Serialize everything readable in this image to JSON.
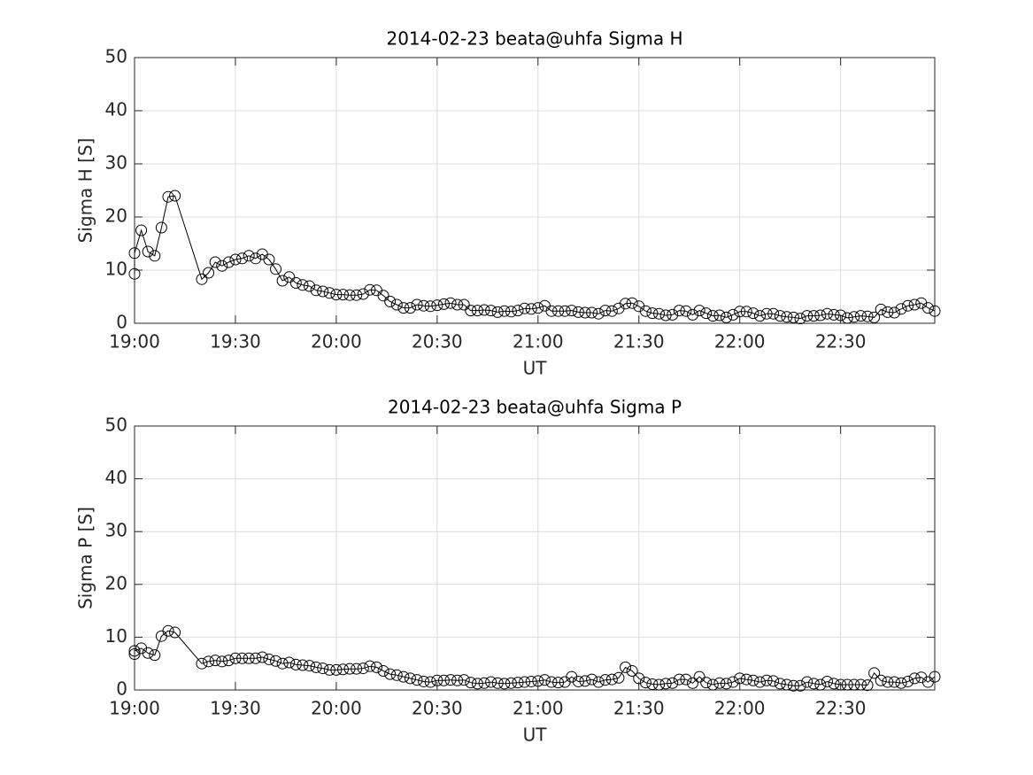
{
  "chart_data": [
    {
      "type": "line",
      "title": "2014-02-23  beata@uhfa Sigma H",
      "xlabel": "UT",
      "ylabel": "Sigma H [S]",
      "color": "#000000",
      "marker": "circle",
      "grid": true,
      "xlim": [
        "19:00",
        "22:58"
      ],
      "xticks": [
        "19:00",
        "19:30",
        "20:00",
        "20:30",
        "21:00",
        "21:30",
        "22:00",
        "22:30"
      ],
      "ylim": [
        0,
        50
      ],
      "yticks": [
        0,
        10,
        20,
        30,
        40,
        50
      ],
      "x": [
        "19:00",
        "19:00",
        "19:02",
        "19:04",
        "19:06",
        "19:08",
        "19:10",
        "19:12",
        "19:20",
        "19:22",
        "19:24",
        "19:26",
        "19:28",
        "19:30",
        "19:32",
        "19:34",
        "19:36",
        "19:38",
        "19:40",
        "19:42",
        "19:44",
        "19:46",
        "19:48",
        "19:50",
        "19:52",
        "19:54",
        "19:56",
        "19:58",
        "20:00",
        "20:02",
        "20:04",
        "20:06",
        "20:08",
        "20:10",
        "20:12",
        "20:14",
        "20:16",
        "20:18",
        "20:20",
        "20:22",
        "20:24",
        "20:26",
        "20:28",
        "20:30",
        "20:32",
        "20:34",
        "20:36",
        "20:38",
        "20:40",
        "20:42",
        "20:44",
        "20:46",
        "20:48",
        "20:50",
        "20:52",
        "20:54",
        "20:56",
        "20:58",
        "21:00",
        "21:02",
        "21:04",
        "21:06",
        "21:08",
        "21:10",
        "21:12",
        "21:14",
        "21:16",
        "21:18",
        "21:20",
        "21:22",
        "21:24",
        "21:26",
        "21:28",
        "21:30",
        "21:32",
        "21:34",
        "21:36",
        "21:38",
        "21:40",
        "21:42",
        "21:44",
        "21:46",
        "21:48",
        "21:50",
        "21:52",
        "21:54",
        "21:56",
        "21:58",
        "22:00",
        "22:02",
        "22:04",
        "22:06",
        "22:08",
        "22:10",
        "22:12",
        "22:14",
        "22:16",
        "22:18",
        "22:20",
        "22:22",
        "22:24",
        "22:26",
        "22:28",
        "22:30",
        "22:32",
        "22:34",
        "22:36",
        "22:38",
        "22:40",
        "22:42",
        "22:44",
        "22:46",
        "22:48",
        "22:50",
        "22:52",
        "22:54",
        "22:56",
        "22:58"
      ],
      "values": [
        9.3,
        13.2,
        17.5,
        13.5,
        12.7,
        18,
        23.8,
        24,
        8.3,
        9.5,
        11.5,
        10.8,
        11.5,
        12,
        12.2,
        12.7,
        12.2,
        13,
        12,
        10.2,
        8,
        8.7,
        7.6,
        7.2,
        7,
        6.2,
        6,
        5.7,
        5.4,
        5.4,
        5.3,
        5.3,
        5.5,
        6.3,
        6.2,
        5.2,
        4.1,
        3.5,
        2.9,
        2.9,
        3.5,
        3.3,
        3.2,
        3.4,
        3.6,
        3.8,
        3.5,
        3.5,
        2.4,
        2.4,
        2.5,
        2.4,
        2.1,
        2.3,
        2.2,
        2.4,
        2.8,
        2.7,
        2.9,
        3.3,
        2.3,
        2.3,
        2.3,
        2.4,
        2.1,
        2.0,
        2.0,
        1.8,
        2.4,
        2.3,
        2.8,
        3.7,
        3.8,
        3.2,
        2.3,
        1.9,
        1.8,
        1.5,
        1.6,
        2.4,
        2.3,
        1.6,
        2.4,
        1.9,
        1.4,
        1.5,
        1.1,
        1.6,
        2.2,
        2.2,
        1.9,
        1.4,
        1.8,
        1.8,
        1.4,
        1.2,
        1.1,
        0.9,
        1.4,
        1.4,
        1.5,
        1.8,
        1.6,
        1.5,
        1.0,
        1.2,
        1.4,
        1.3,
        1.1,
        2.6,
        2.1,
        2.0,
        2.7,
        3.3,
        3.5,
        3.8,
        2.9,
        2.3
      ]
    },
    {
      "type": "line",
      "title": "2014-02-23  beata@uhfa Sigma P",
      "xlabel": "UT",
      "ylabel": "Sigma P [S]",
      "color": "#000000",
      "marker": "circle",
      "grid": true,
      "xlim": [
        "19:00",
        "22:58"
      ],
      "xticks": [
        "19:00",
        "19:30",
        "20:00",
        "20:30",
        "21:00",
        "21:30",
        "22:00",
        "22:30"
      ],
      "ylim": [
        0,
        50
      ],
      "yticks": [
        0,
        10,
        20,
        30,
        40,
        50
      ],
      "x": [
        "19:00",
        "19:00",
        "19:02",
        "19:04",
        "19:06",
        "19:08",
        "19:10",
        "19:12",
        "19:20",
        "19:22",
        "19:24",
        "19:26",
        "19:28",
        "19:30",
        "19:32",
        "19:34",
        "19:36",
        "19:38",
        "19:40",
        "19:42",
        "19:44",
        "19:46",
        "19:48",
        "19:50",
        "19:52",
        "19:54",
        "19:56",
        "19:58",
        "20:00",
        "20:02",
        "20:04",
        "20:06",
        "20:08",
        "20:10",
        "20:12",
        "20:14",
        "20:16",
        "20:18",
        "20:20",
        "20:22",
        "20:24",
        "20:26",
        "20:28",
        "20:30",
        "20:32",
        "20:34",
        "20:36",
        "20:38",
        "20:40",
        "20:42",
        "20:44",
        "20:46",
        "20:48",
        "20:50",
        "20:52",
        "20:54",
        "20:56",
        "20:58",
        "21:00",
        "21:02",
        "21:04",
        "21:06",
        "21:08",
        "21:10",
        "21:12",
        "21:14",
        "21:16",
        "21:18",
        "21:20",
        "21:22",
        "21:24",
        "21:26",
        "21:28",
        "21:30",
        "21:32",
        "21:34",
        "21:36",
        "21:38",
        "21:40",
        "21:42",
        "21:44",
        "21:46",
        "21:48",
        "21:50",
        "21:52",
        "21:54",
        "21:56",
        "21:58",
        "22:00",
        "22:02",
        "22:04",
        "22:06",
        "22:08",
        "22:10",
        "22:12",
        "22:14",
        "22:16",
        "22:18",
        "22:20",
        "22:22",
        "22:24",
        "22:26",
        "22:28",
        "22:30",
        "22:32",
        "22:34",
        "22:36",
        "22:38",
        "22:40",
        "22:42",
        "22:44",
        "22:46",
        "22:48",
        "22:50",
        "22:52",
        "22:54",
        "22:56",
        "22:58"
      ],
      "values": [
        6.8,
        7.4,
        7.9,
        7.0,
        6.6,
        10.2,
        11.2,
        10.9,
        5.0,
        5.4,
        5.6,
        5.4,
        5.6,
        6.0,
        6.0,
        6.0,
        6.0,
        6.2,
        5.8,
        5.5,
        5.0,
        5.2,
        4.8,
        4.7,
        4.6,
        4.3,
        4.1,
        3.8,
        3.8,
        3.9,
        4.0,
        4.0,
        4.1,
        4.5,
        4.3,
        3.6,
        3.0,
        2.8,
        2.5,
        2.2,
        1.9,
        1.6,
        1.5,
        1.8,
        1.8,
        1.9,
        1.8,
        1.9,
        1.4,
        1.2,
        1.3,
        1.5,
        1.3,
        1.2,
        1.3,
        1.4,
        1.5,
        1.6,
        1.7,
        1.9,
        1.5,
        1.4,
        1.5,
        2.5,
        1.6,
        1.7,
        2.0,
        1.5,
        1.9,
        2.0,
        2.3,
        4.3,
        3.6,
        2.2,
        1.4,
        1.1,
        1.0,
        1.2,
        1.3,
        2.0,
        2.0,
        1.3,
        2.5,
        1.4,
        1.0,
        1.3,
        1.2,
        1.5,
        2.2,
        2.0,
        1.8,
        1.5,
        1.8,
        1.7,
        1.2,
        1.0,
        0.8,
        0.8,
        1.5,
        1.2,
        1.0,
        1.6,
        1.2,
        1.0,
        1.0,
        1.0,
        1.0,
        0.9,
        3.2,
        1.8,
        1.5,
        1.5,
        1.3,
        1.6,
        2.2,
        2.4,
        1.5,
        2.5
      ]
    }
  ]
}
